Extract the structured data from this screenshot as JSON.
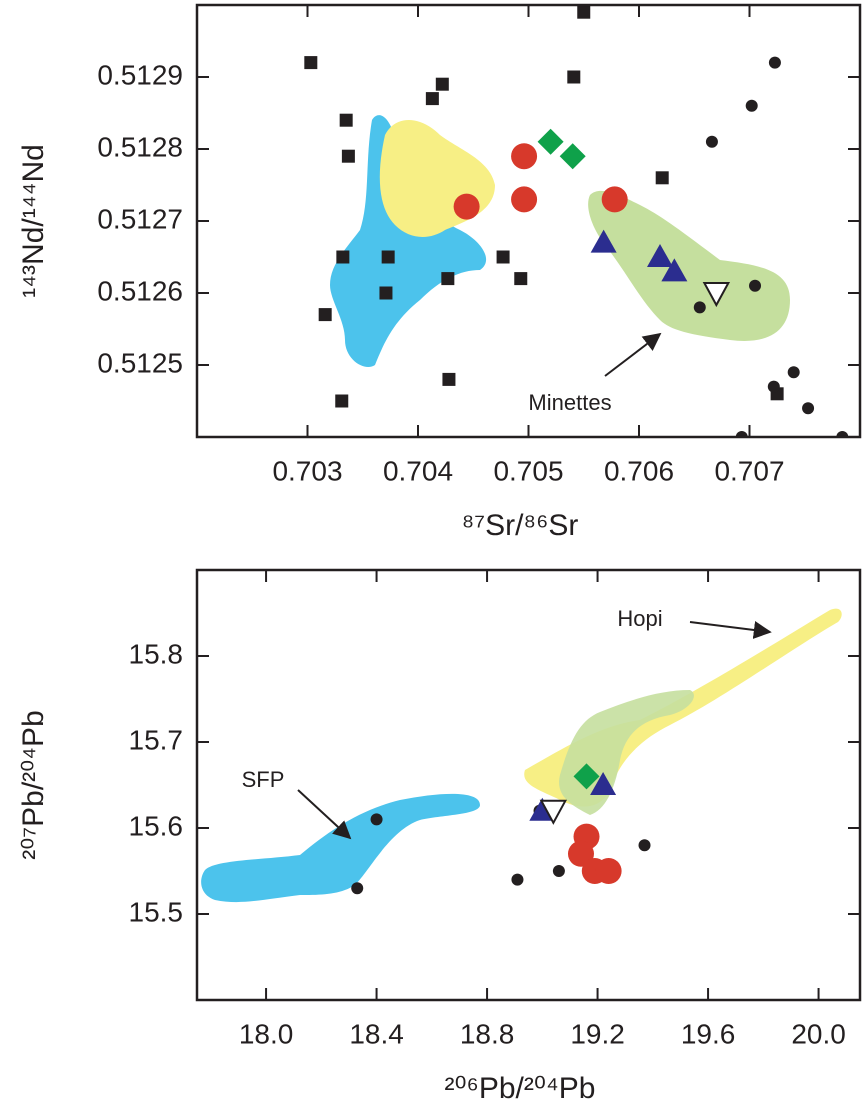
{
  "chart_data": [
    {
      "type": "scatter",
      "x_label": "⁸⁷Sr/⁸⁶Sr",
      "y_label": "¹⁴³Nd/¹⁴⁴Nd",
      "xlim": [
        0.702,
        0.708
      ],
      "ylim": [
        0.5124,
        0.513
      ],
      "xticks": [
        0.703,
        0.704,
        0.705,
        0.706,
        0.707
      ],
      "yticks": [
        0.5125,
        0.5126,
        0.5127,
        0.5128,
        0.5129
      ],
      "annotations": [
        "Minettes"
      ],
      "series": [
        {
          "marker": "square",
          "color": "#231f20",
          "x": [
            0.70303,
            0.70335,
            0.70337,
            0.70332,
            0.70373,
            0.70371,
            0.70316,
            0.70331,
            0.70413,
            0.70422,
            0.70427,
            0.70428,
            0.70477,
            0.70493,
            0.70541,
            0.7055,
            0.70621,
            0.70725
          ],
          "y": [
            0.51292,
            0.51284,
            0.51279,
            0.51265,
            0.51265,
            0.5126,
            0.51257,
            0.51245,
            0.51287,
            0.51289,
            0.51262,
            0.51248,
            0.51265,
            0.51262,
            0.5129,
            0.51299,
            0.51276,
            0.51246
          ]
        },
        {
          "marker": "dot",
          "color": "#231f20",
          "x": [
            0.70666,
            0.70702,
            0.70723,
            0.70705,
            0.70655,
            0.70722,
            0.7074,
            0.70753,
            0.70693,
            0.70784
          ],
          "y": [
            0.51281,
            0.51286,
            0.51292,
            0.51261,
            0.51258,
            0.51247,
            0.51249,
            0.51244,
            0.5124,
            0.5124
          ]
        },
        {
          "marker": "circle",
          "color": "#d7392b",
          "x": [
            0.70496,
            0.70496,
            0.70444,
            0.70578
          ],
          "y": [
            0.51279,
            0.51273,
            0.51272,
            0.51273
          ]
        },
        {
          "marker": "diamond",
          "color": "#0fa14a",
          "x": [
            0.7052,
            0.7054
          ],
          "y": [
            0.51281,
            0.51279
          ]
        },
        {
          "marker": "triangle",
          "color": "#2b2d8f",
          "x": [
            0.70568,
            0.70619,
            0.70632
          ],
          "y": [
            0.51267,
            0.51265,
            0.51263
          ]
        },
        {
          "marker": "open-triangle-down",
          "color": "#231f20",
          "x": [
            0.7067
          ],
          "y": [
            0.5126
          ]
        }
      ]
    },
    {
      "type": "scatter",
      "x_label": "²⁰⁶Pb/²⁰⁴Pb",
      "y_label": "²⁰⁷Pb/²⁰⁴Pb",
      "xlim": [
        17.75,
        20.15
      ],
      "ylim": [
        15.4,
        15.9
      ],
      "xticks": [
        {
          "value": 18,
          "label": "18.0"
        },
        18.4,
        18.8,
        19.2,
        19.6,
        {
          "value": 20,
          "label": "20.0"
        }
      ],
      "yticks": [
        15.5,
        15.6,
        15.7,
        15.8
      ],
      "annotations": [
        "Hopi",
        "SFP"
      ],
      "series": [
        {
          "marker": "dot",
          "color": "#231f20",
          "x": [
            18.4,
            18.33,
            18.99,
            18.91,
            19.06,
            19.37
          ],
          "y": [
            15.61,
            15.53,
            15.62,
            15.54,
            15.55,
            15.58
          ]
        },
        {
          "marker": "circle",
          "color": "#d7392b",
          "x": [
            19.16,
            19.14,
            19.19,
            19.24
          ],
          "y": [
            15.59,
            15.57,
            15.55,
            15.55
          ]
        },
        {
          "marker": "diamond",
          "color": "#0fa14a",
          "x": [
            19.16
          ],
          "y": [
            15.66
          ]
        },
        {
          "marker": "triangle",
          "color": "#2b2d8f",
          "x": [
            19.22,
            19.0
          ],
          "y": [
            15.65,
            15.62
          ]
        },
        {
          "marker": "open-triangle-down",
          "color": "#231f20",
          "x": [
            19.04
          ],
          "y": [
            15.62
          ]
        }
      ]
    }
  ]
}
